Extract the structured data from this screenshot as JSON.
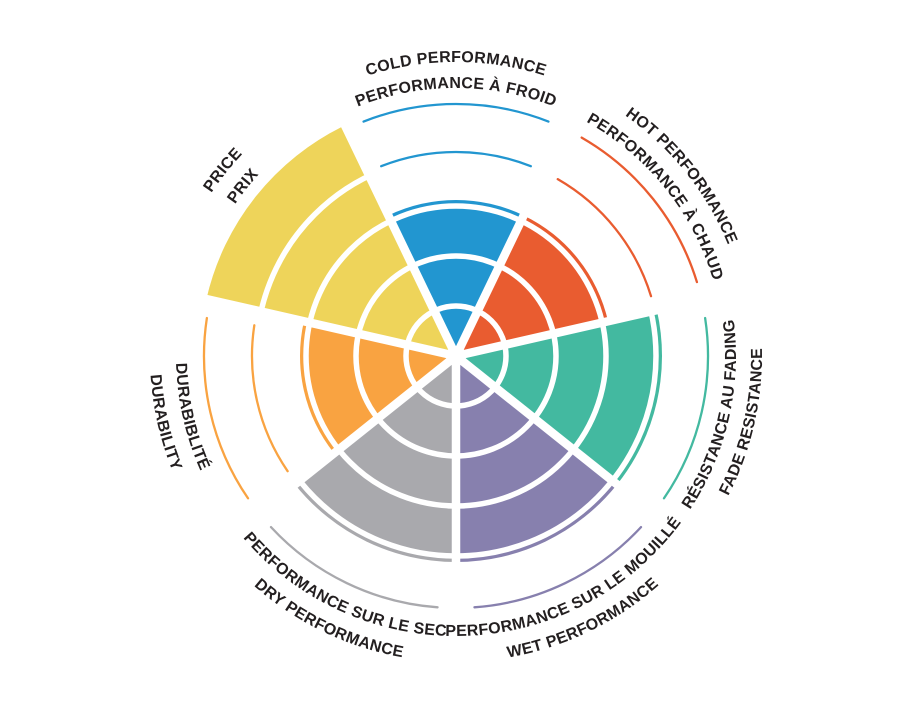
{
  "page": {
    "background": "#ffffff"
  },
  "chart_data": {
    "type": "bar",
    "layout": "polar-radial-rating-wheel",
    "title": "",
    "max_value": 5,
    "ring_count": 5,
    "start_sector": "top-center, clockwise order",
    "legend_position": "labels-around-rim",
    "grid": "white ring separators over filled wedges",
    "label_color": "#231f20",
    "ring_gap_color": "#ffffff",
    "sectors": [
      {
        "id": "cold",
        "label_en": "COLD PERFORMANCE",
        "label_fr": "PERFORMANCE À FROID",
        "value": 3,
        "color": "#2296d0",
        "label_flipped": false
      },
      {
        "id": "hot",
        "label_en": "HOT PERFORMANCE",
        "label_fr": "PERFORMANCE À CHAUD",
        "value": 3,
        "color": "#e95c30",
        "label_flipped": false
      },
      {
        "id": "fade",
        "label_en": "FADE RESISTANCE",
        "label_fr": "RÉSISTANCE AU FADING",
        "value": 4,
        "color": "#43b9a0",
        "label_flipped": true
      },
      {
        "id": "wet",
        "label_en": "WET PERFORMANCE",
        "label_fr": "PERFORMANCE SUR LE MOUILLÉ",
        "value": 4,
        "color": "#8780ae",
        "label_flipped": true
      },
      {
        "id": "dry",
        "label_en": "DRY PERFORMANCE",
        "label_fr": "PERFORMANCE SUR LE SEC",
        "value": 4,
        "color": "#a9a9ad",
        "label_flipped": true
      },
      {
        "id": "durability",
        "label_en": "DURABILITY",
        "label_fr": "DURABIBLITÉ",
        "value": 3,
        "color": "#f9a341",
        "label_flipped": true
      },
      {
        "id": "price",
        "label_en": "PRICE",
        "label_fr": "PRIX",
        "value": 5,
        "color": "#eed45a",
        "label_flipped": false
      }
    ]
  }
}
